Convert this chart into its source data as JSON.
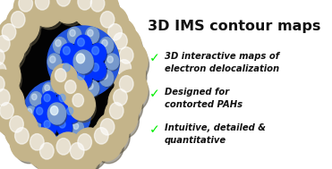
{
  "title": "3D IMS contour maps",
  "title_fontsize": 11.5,
  "title_color": "#111111",
  "bullet_items": [
    "3D interactive maps of\nelectron delocalization",
    "Designed for\ncontorted PAHs",
    "Intuitive, detailed &\nquantitative"
  ],
  "bullet_color": "#00ee00",
  "bullet_fontsize": 7.2,
  "text_color": "#111111",
  "background_color": "#ffffff",
  "checkmark": "✓",
  "tan_color": "#C4B48A",
  "tan_shadow": "#8A7A50",
  "blue_bright": "#0033FF",
  "blue_mid": "#2255DD",
  "blue_light": "#7799CC",
  "blue_pale": "#99AACC",
  "black_core": "#030303"
}
